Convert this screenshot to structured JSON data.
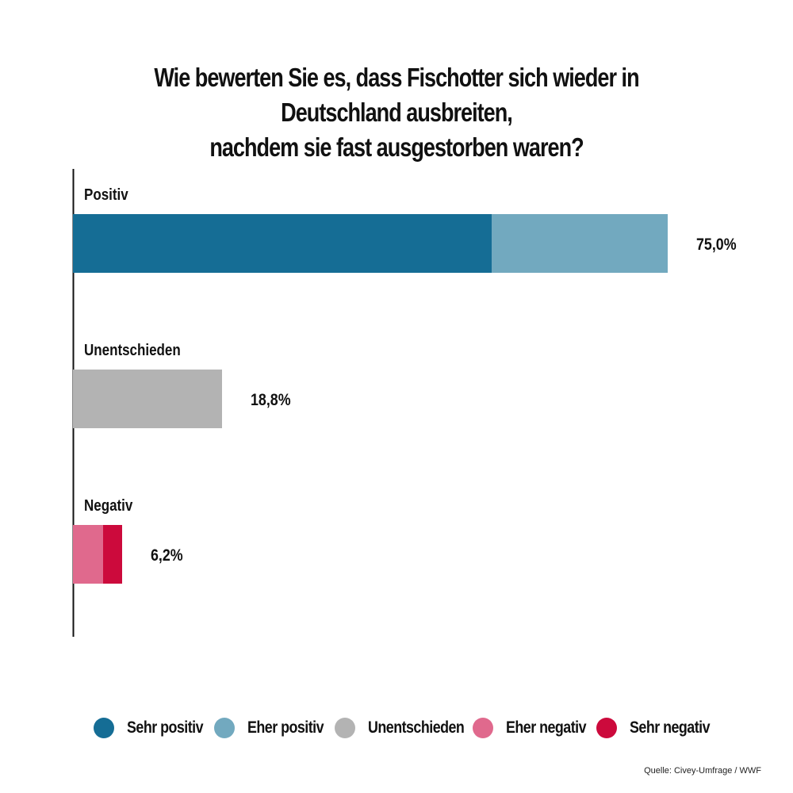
{
  "chart_data": {
    "type": "bar",
    "orientation": "horizontal",
    "stacked": true,
    "title": "Wie bewerten Sie es, dass Fischotter sich wieder in Deutschland ausbreiten, nachdem sie fast ausgestorben waren?",
    "title_lines": [
      "Wie bewerten Sie es, dass Fischotter sich wieder in Deutschland ausbreiten,",
      "nachdem sie fast ausgestorben waren?"
    ],
    "categories": [
      "Positiv",
      "Unentschieden",
      "Negativ"
    ],
    "totals": [
      75.0,
      18.8,
      6.2
    ],
    "total_labels": [
      "75,0%",
      "18,8%",
      "6,2%"
    ],
    "series": [
      {
        "name": "Sehr positiv",
        "color": "#156d95",
        "values": [
          52.8,
          0,
          0
        ]
      },
      {
        "name": "Eher positiv",
        "color": "#72a9bf",
        "values": [
          22.2,
          0,
          0
        ]
      },
      {
        "name": "Unentschieden",
        "color": "#b3b3b3",
        "values": [
          0,
          18.8,
          0
        ]
      },
      {
        "name": "Eher negativ",
        "color": "#e0698d",
        "values": [
          0,
          0,
          3.8
        ]
      },
      {
        "name": "Sehr negativ",
        "color": "#cc0a3c",
        "values": [
          0,
          0,
          2.4
        ]
      }
    ],
    "xlim": [
      0,
      75.0
    ],
    "grid": false,
    "legend_position": "bottom"
  },
  "legend": [
    {
      "label": "Sehr positiv",
      "color": "#156d95"
    },
    {
      "label": "Eher positiv",
      "color": "#72a9bf"
    },
    {
      "label": "Unentschieden",
      "color": "#b3b3b3"
    },
    {
      "label": "Eher negativ",
      "color": "#e0698d"
    },
    {
      "label": "Sehr negativ",
      "color": "#cc0a3c"
    }
  ],
  "source": "Quelle: Civey-Umfrage / WWF"
}
